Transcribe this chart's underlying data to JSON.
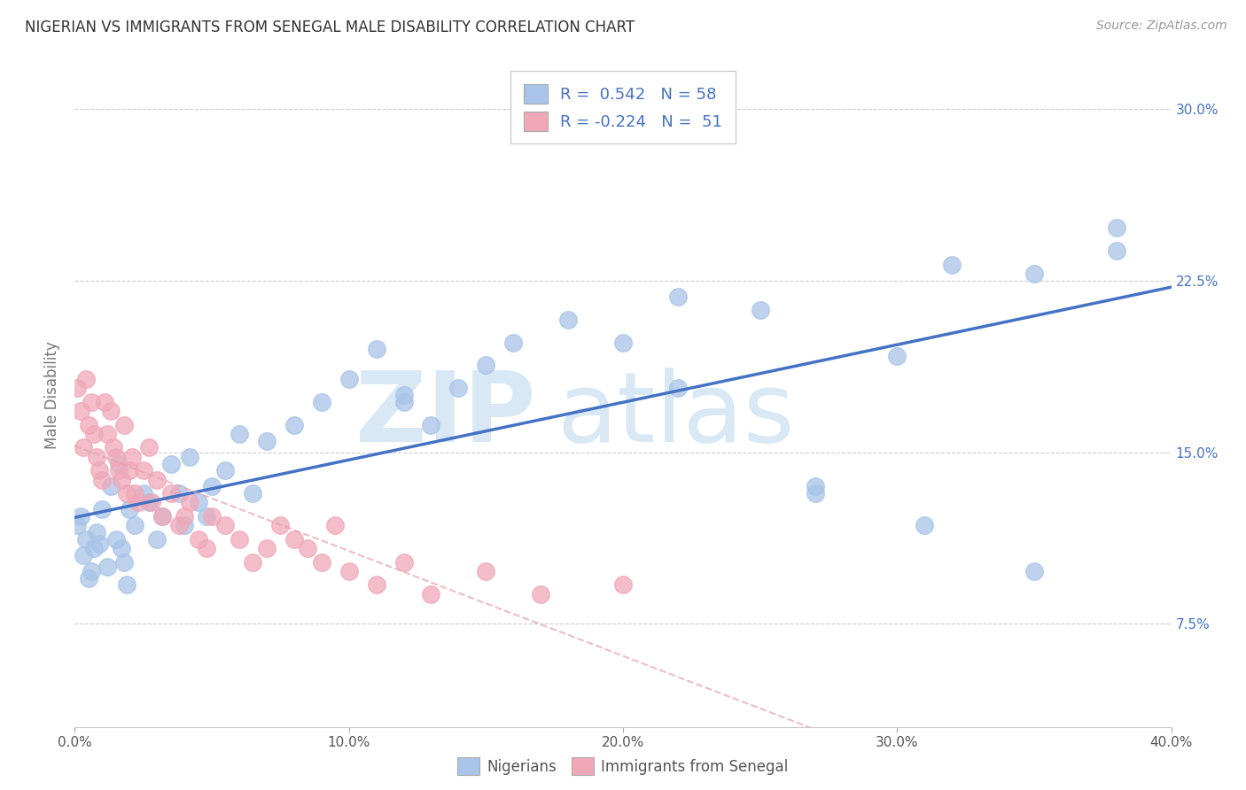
{
  "title": "NIGERIAN VS IMMIGRANTS FROM SENEGAL MALE DISABILITY CORRELATION CHART",
  "source": "Source: ZipAtlas.com",
  "ylabel": "Male Disability",
  "legend_blue_r": "0.542",
  "legend_blue_n": "58",
  "legend_pink_r": "-0.224",
  "legend_pink_n": "51",
  "blue_color": "#a8c4e8",
  "pink_color": "#f0a8b8",
  "blue_line_color": "#4472c4",
  "pink_line_color": "#e8a0b0",
  "watermark_zip": "ZIP",
  "watermark_atlas": "atlas",
  "x_min": 0.0,
  "x_max": 0.4,
  "y_min": 0.03,
  "y_max": 0.32,
  "y_tick_vals": [
    0.075,
    0.15,
    0.225,
    0.3
  ],
  "y_tick_labels": [
    "7.5%",
    "15.0%",
    "22.5%",
    "30.0%"
  ],
  "x_tick_vals": [
    0.0,
    0.1,
    0.2,
    0.3,
    0.4
  ],
  "x_tick_labels": [
    "0.0%",
    "10.0%",
    "20.0%",
    "30.0%",
    "40.0%"
  ],
  "nigerians_x": [
    0.001,
    0.002,
    0.003,
    0.004,
    0.005,
    0.006,
    0.007,
    0.008,
    0.009,
    0.01,
    0.012,
    0.013,
    0.015,
    0.016,
    0.017,
    0.018,
    0.019,
    0.02,
    0.022,
    0.025,
    0.027,
    0.03,
    0.032,
    0.035,
    0.038,
    0.04,
    0.042,
    0.045,
    0.048,
    0.05,
    0.055,
    0.06,
    0.065,
    0.07,
    0.08,
    0.09,
    0.1,
    0.11,
    0.12,
    0.13,
    0.14,
    0.15,
    0.16,
    0.18,
    0.2,
    0.22,
    0.25,
    0.27,
    0.3,
    0.32,
    0.35,
    0.38,
    0.22,
    0.27,
    0.31,
    0.35,
    0.38,
    0.12
  ],
  "nigerians_y": [
    0.118,
    0.122,
    0.105,
    0.112,
    0.095,
    0.098,
    0.108,
    0.115,
    0.11,
    0.125,
    0.1,
    0.135,
    0.112,
    0.145,
    0.108,
    0.102,
    0.092,
    0.125,
    0.118,
    0.132,
    0.128,
    0.112,
    0.122,
    0.145,
    0.132,
    0.118,
    0.148,
    0.128,
    0.122,
    0.135,
    0.142,
    0.158,
    0.132,
    0.155,
    0.162,
    0.172,
    0.182,
    0.195,
    0.172,
    0.162,
    0.178,
    0.188,
    0.198,
    0.208,
    0.198,
    0.218,
    0.212,
    0.135,
    0.192,
    0.232,
    0.228,
    0.238,
    0.178,
    0.132,
    0.118,
    0.098,
    0.248,
    0.175
  ],
  "senegal_x": [
    0.001,
    0.002,
    0.003,
    0.004,
    0.005,
    0.006,
    0.007,
    0.008,
    0.009,
    0.01,
    0.011,
    0.012,
    0.013,
    0.014,
    0.015,
    0.016,
    0.017,
    0.018,
    0.019,
    0.02,
    0.021,
    0.022,
    0.023,
    0.025,
    0.027,
    0.028,
    0.03,
    0.032,
    0.035,
    0.038,
    0.04,
    0.042,
    0.045,
    0.048,
    0.05,
    0.055,
    0.06,
    0.065,
    0.07,
    0.075,
    0.08,
    0.085,
    0.09,
    0.095,
    0.1,
    0.11,
    0.12,
    0.13,
    0.15,
    0.17,
    0.2
  ],
  "senegal_y": [
    0.178,
    0.168,
    0.152,
    0.182,
    0.162,
    0.172,
    0.158,
    0.148,
    0.142,
    0.138,
    0.172,
    0.158,
    0.168,
    0.152,
    0.148,
    0.142,
    0.138,
    0.162,
    0.132,
    0.142,
    0.148,
    0.132,
    0.128,
    0.142,
    0.152,
    0.128,
    0.138,
    0.122,
    0.132,
    0.118,
    0.122,
    0.128,
    0.112,
    0.108,
    0.122,
    0.118,
    0.112,
    0.102,
    0.108,
    0.118,
    0.112,
    0.108,
    0.102,
    0.118,
    0.098,
    0.092,
    0.102,
    0.088,
    0.098,
    0.088,
    0.092
  ]
}
